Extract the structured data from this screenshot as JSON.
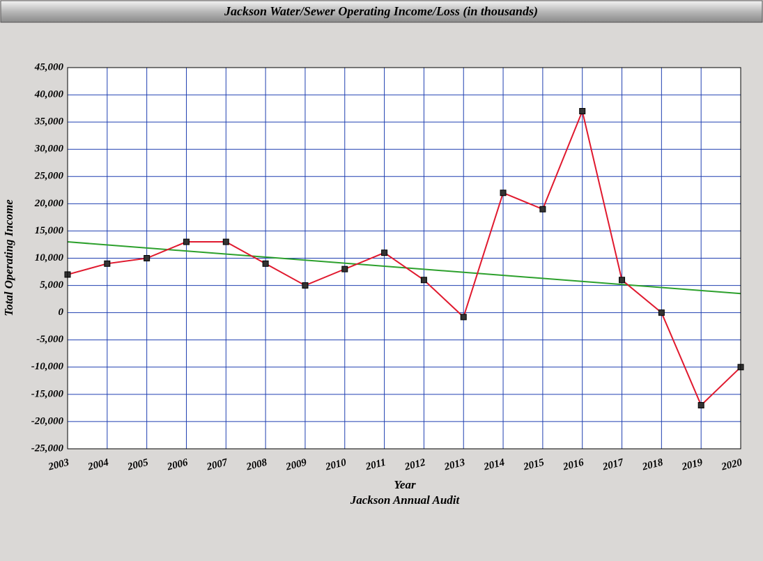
{
  "chart_data": {
    "type": "line",
    "title": "Jackson Water/Sewer Operating Income/Loss (in thousands)",
    "x_label": "Year",
    "subtitle": "Jackson Annual Audit",
    "y_label": "Total Operating Income",
    "x": [
      2003,
      2004,
      2005,
      2006,
      2007,
      2008,
      2009,
      2010,
      2011,
      2012,
      2013,
      2014,
      2015,
      2016,
      2017,
      2018,
      2019,
      2020
    ],
    "series": [
      {
        "color": "#e0192e",
        "marker_color": "#333333",
        "values": [
          7000,
          9000,
          10000,
          13000,
          13000,
          9000,
          5000,
          8000,
          11000,
          6000,
          -800,
          22000,
          19000,
          37000,
          6000,
          0,
          -17000,
          -10000
        ]
      }
    ],
    "trendline": {
      "color": "#2ca02c",
      "x": [
        2003,
        2020
      ],
      "values": [
        13000,
        3500
      ]
    },
    "xlim": [
      2003,
      2020
    ],
    "xticks": [
      2003,
      2004,
      2005,
      2006,
      2007,
      2008,
      2009,
      2010,
      2011,
      2012,
      2013,
      2014,
      2015,
      2016,
      2017,
      2018,
      2019,
      2020
    ],
    "ylim": [
      -25000,
      45000
    ],
    "yticks": [
      {
        "value": -25000,
        "label": "-25,000"
      },
      {
        "value": -20000,
        "label": "-20,000"
      },
      {
        "value": -15000,
        "label": "-15,000"
      },
      {
        "value": -10000,
        "label": "-10,000"
      },
      {
        "value": -5000,
        "label": "-5,000"
      },
      0,
      {
        "value": 5000,
        "label": "5,000"
      },
      {
        "value": 10000,
        "label": "10,000"
      },
      {
        "value": 15000,
        "label": "15,000"
      },
      {
        "value": 20000,
        "label": "20,000"
      },
      {
        "value": 25000,
        "label": "25,000"
      },
      {
        "value": 30000,
        "label": "30,000"
      },
      {
        "value": 35000,
        "label": "35,000"
      },
      {
        "value": 40000,
        "label": "40,000"
      },
      {
        "value": 45000,
        "label": "45,000"
      }
    ],
    "grid": true,
    "grid_color": "#1f3fb0"
  }
}
